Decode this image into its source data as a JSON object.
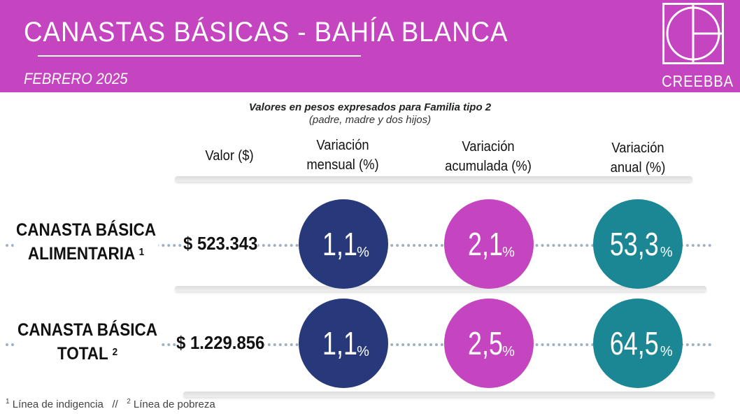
{
  "header": {
    "title": "CANASTAS  BÁSICAS - BAHÍA  BLANCA",
    "subtitle": "FEBRERO 2025",
    "logo_text": "CREEBBA"
  },
  "note": {
    "line1": "Valores en pesos expresados para Familia tipo 2",
    "line2": "(padre, madre y dos hijos)"
  },
  "columns": {
    "valor": "Valor ($)",
    "mensual_l1": "Variación",
    "mensual_l2": "mensual (%)",
    "acumulada_l1": "Variación",
    "acumulada_l2": "acumulada (%)",
    "anual_l1": "Variación",
    "anual_l2": "anual (%)"
  },
  "rows": [
    {
      "label_l1": "CANASTA BÁSICA",
      "label_l2": "ALIMENTARIA",
      "footnote": "1",
      "valor": "$ 523.343",
      "mensual": "1,1",
      "acumulada": "2,1",
      "anual": "53,3"
    },
    {
      "label_l1": "CANASTA BÁSICA",
      "label_l2": "TOTAL",
      "footnote": "2",
      "valor": "$ 1.229.856",
      "mensual": "1,1",
      "acumulada": "2,5",
      "anual": "64,5"
    }
  ],
  "pct_symbol": "%",
  "footer": {
    "fn1_mark": "1",
    "fn1_text": " Línea de indigencia   //   ",
    "fn2_mark": "2",
    "fn2_text": " Línea de pobreza"
  },
  "colors": {
    "header_bg": "#c544c0",
    "mensual": "#27397a",
    "acumulada": "#c544c0",
    "anual": "#1b8794"
  }
}
